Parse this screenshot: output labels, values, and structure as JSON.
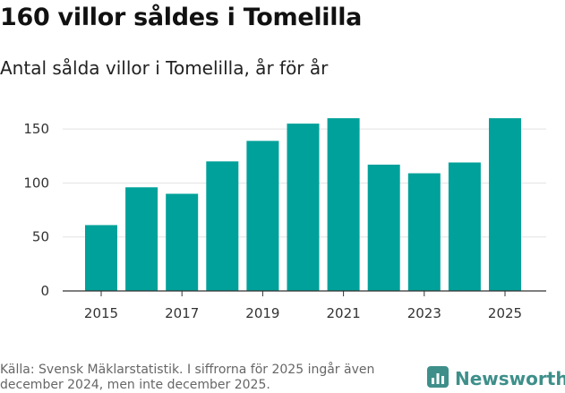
{
  "chart_data": {
    "type": "bar",
    "title": "160 villor såldes i Tomelilla",
    "subtitle": "Antal sålda villor i Tomelilla, år för år",
    "categories": [
      "2015",
      "2016",
      "2017",
      "2018",
      "2019",
      "2020",
      "2021",
      "2022",
      "2023",
      "2024",
      "2025"
    ],
    "values": [
      61,
      96,
      90,
      120,
      139,
      155,
      160,
      117,
      109,
      119,
      160
    ],
    "x_tick_labels": [
      "2015",
      "2017",
      "2019",
      "2021",
      "2023",
      "2025"
    ],
    "y_ticks": [
      0,
      50,
      100,
      150
    ],
    "y_tick_labels": [
      "0",
      "50",
      "100",
      "150"
    ],
    "ylim": [
      0,
      170
    ],
    "grid": true,
    "xlabel": "",
    "ylabel": "",
    "bar_color": "#00a19a"
  },
  "footer": {
    "source": "Källa: Svensk Mäklarstatistik. I siffrorna för 2025 ingår även december 2024, men inte december 2025."
  },
  "brand": {
    "name": "Newsworthy",
    "color": "#3e8f8a"
  }
}
